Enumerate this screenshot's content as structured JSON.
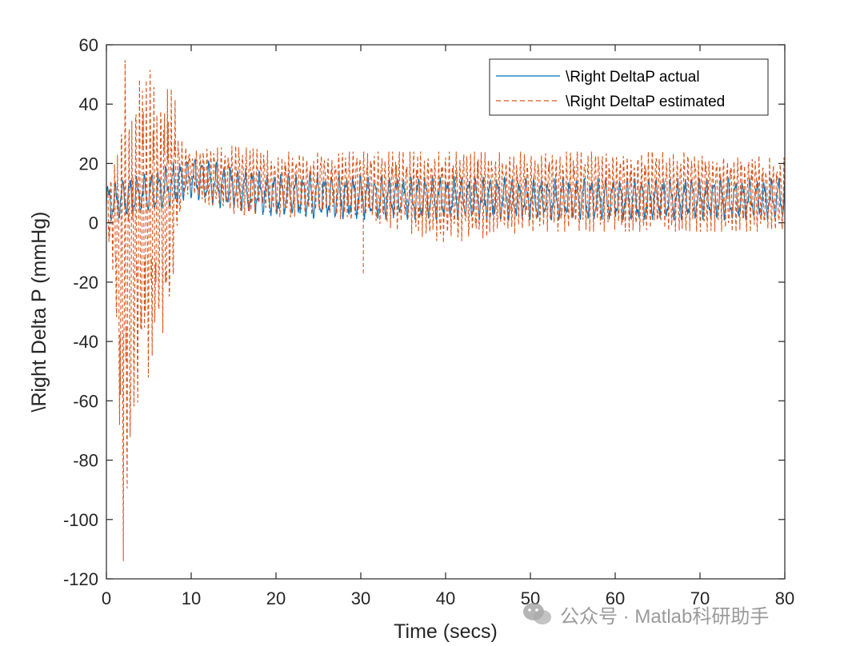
{
  "chart_data": {
    "type": "line",
    "title": "",
    "xlabel": "Time (secs)",
    "ylabel": "\\Right Delta P (mmHg)",
    "xlim": [
      0,
      80
    ],
    "ylim": [
      -120,
      60
    ],
    "xticks": [
      0,
      10,
      20,
      30,
      40,
      50,
      60,
      70,
      80
    ],
    "yticks": [
      -120,
      -100,
      -80,
      -60,
      -40,
      -20,
      0,
      20,
      40,
      60
    ],
    "grid": false,
    "legend_position": "top-right",
    "series": [
      {
        "name": "\\Right DeltaP actual",
        "color": "#0072BD",
        "style": "solid",
        "description": "pulsatile signal, oscillates roughly between 1 and 16 mmHg; peaks near 21 mmHg around t = 8-12 s",
        "x": [
          0,
          1,
          2,
          4,
          6,
          8,
          10,
          12,
          15,
          20,
          30,
          40,
          50,
          60,
          70,
          80
        ],
        "upper": [
          13,
          14,
          15,
          16,
          18,
          21,
          22,
          21,
          19,
          17,
          16,
          16,
          15,
          15,
          15,
          15
        ],
        "lower": [
          0,
          0,
          2,
          3,
          3,
          5,
          8,
          6,
          4,
          2,
          1,
          1,
          1,
          1,
          1,
          1
        ]
      },
      {
        "name": "\\Right DeltaP estimated",
        "color": "#D95319",
        "style": "dashed",
        "description": "large oscillation between about -114 and 56 mmHg during t = 1-8 s, then settles to about 2-24 mmHg",
        "x": [
          0,
          1,
          2,
          3,
          4,
          5,
          6,
          7,
          8,
          9,
          10,
          12,
          15,
          20,
          30,
          40,
          50,
          60,
          70,
          80
        ],
        "upper": [
          14,
          20,
          56,
          50,
          48,
          52,
          49,
          47,
          44,
          26,
          24,
          25,
          26,
          24,
          24,
          24,
          24,
          24,
          24,
          22
        ],
        "lower": [
          -5,
          -20,
          -114,
          -75,
          -55,
          -52,
          -42,
          -38,
          -15,
          8,
          10,
          5,
          3,
          2,
          1,
          -7,
          -3,
          -3,
          -3,
          -3
        ]
      }
    ],
    "annotations": [
      {
        "x": 30.3,
        "y": -17,
        "text": ""
      }
    ]
  },
  "watermark": {
    "text": "公众号 · Matlab科研助手",
    "icon": "wechat-icon"
  }
}
